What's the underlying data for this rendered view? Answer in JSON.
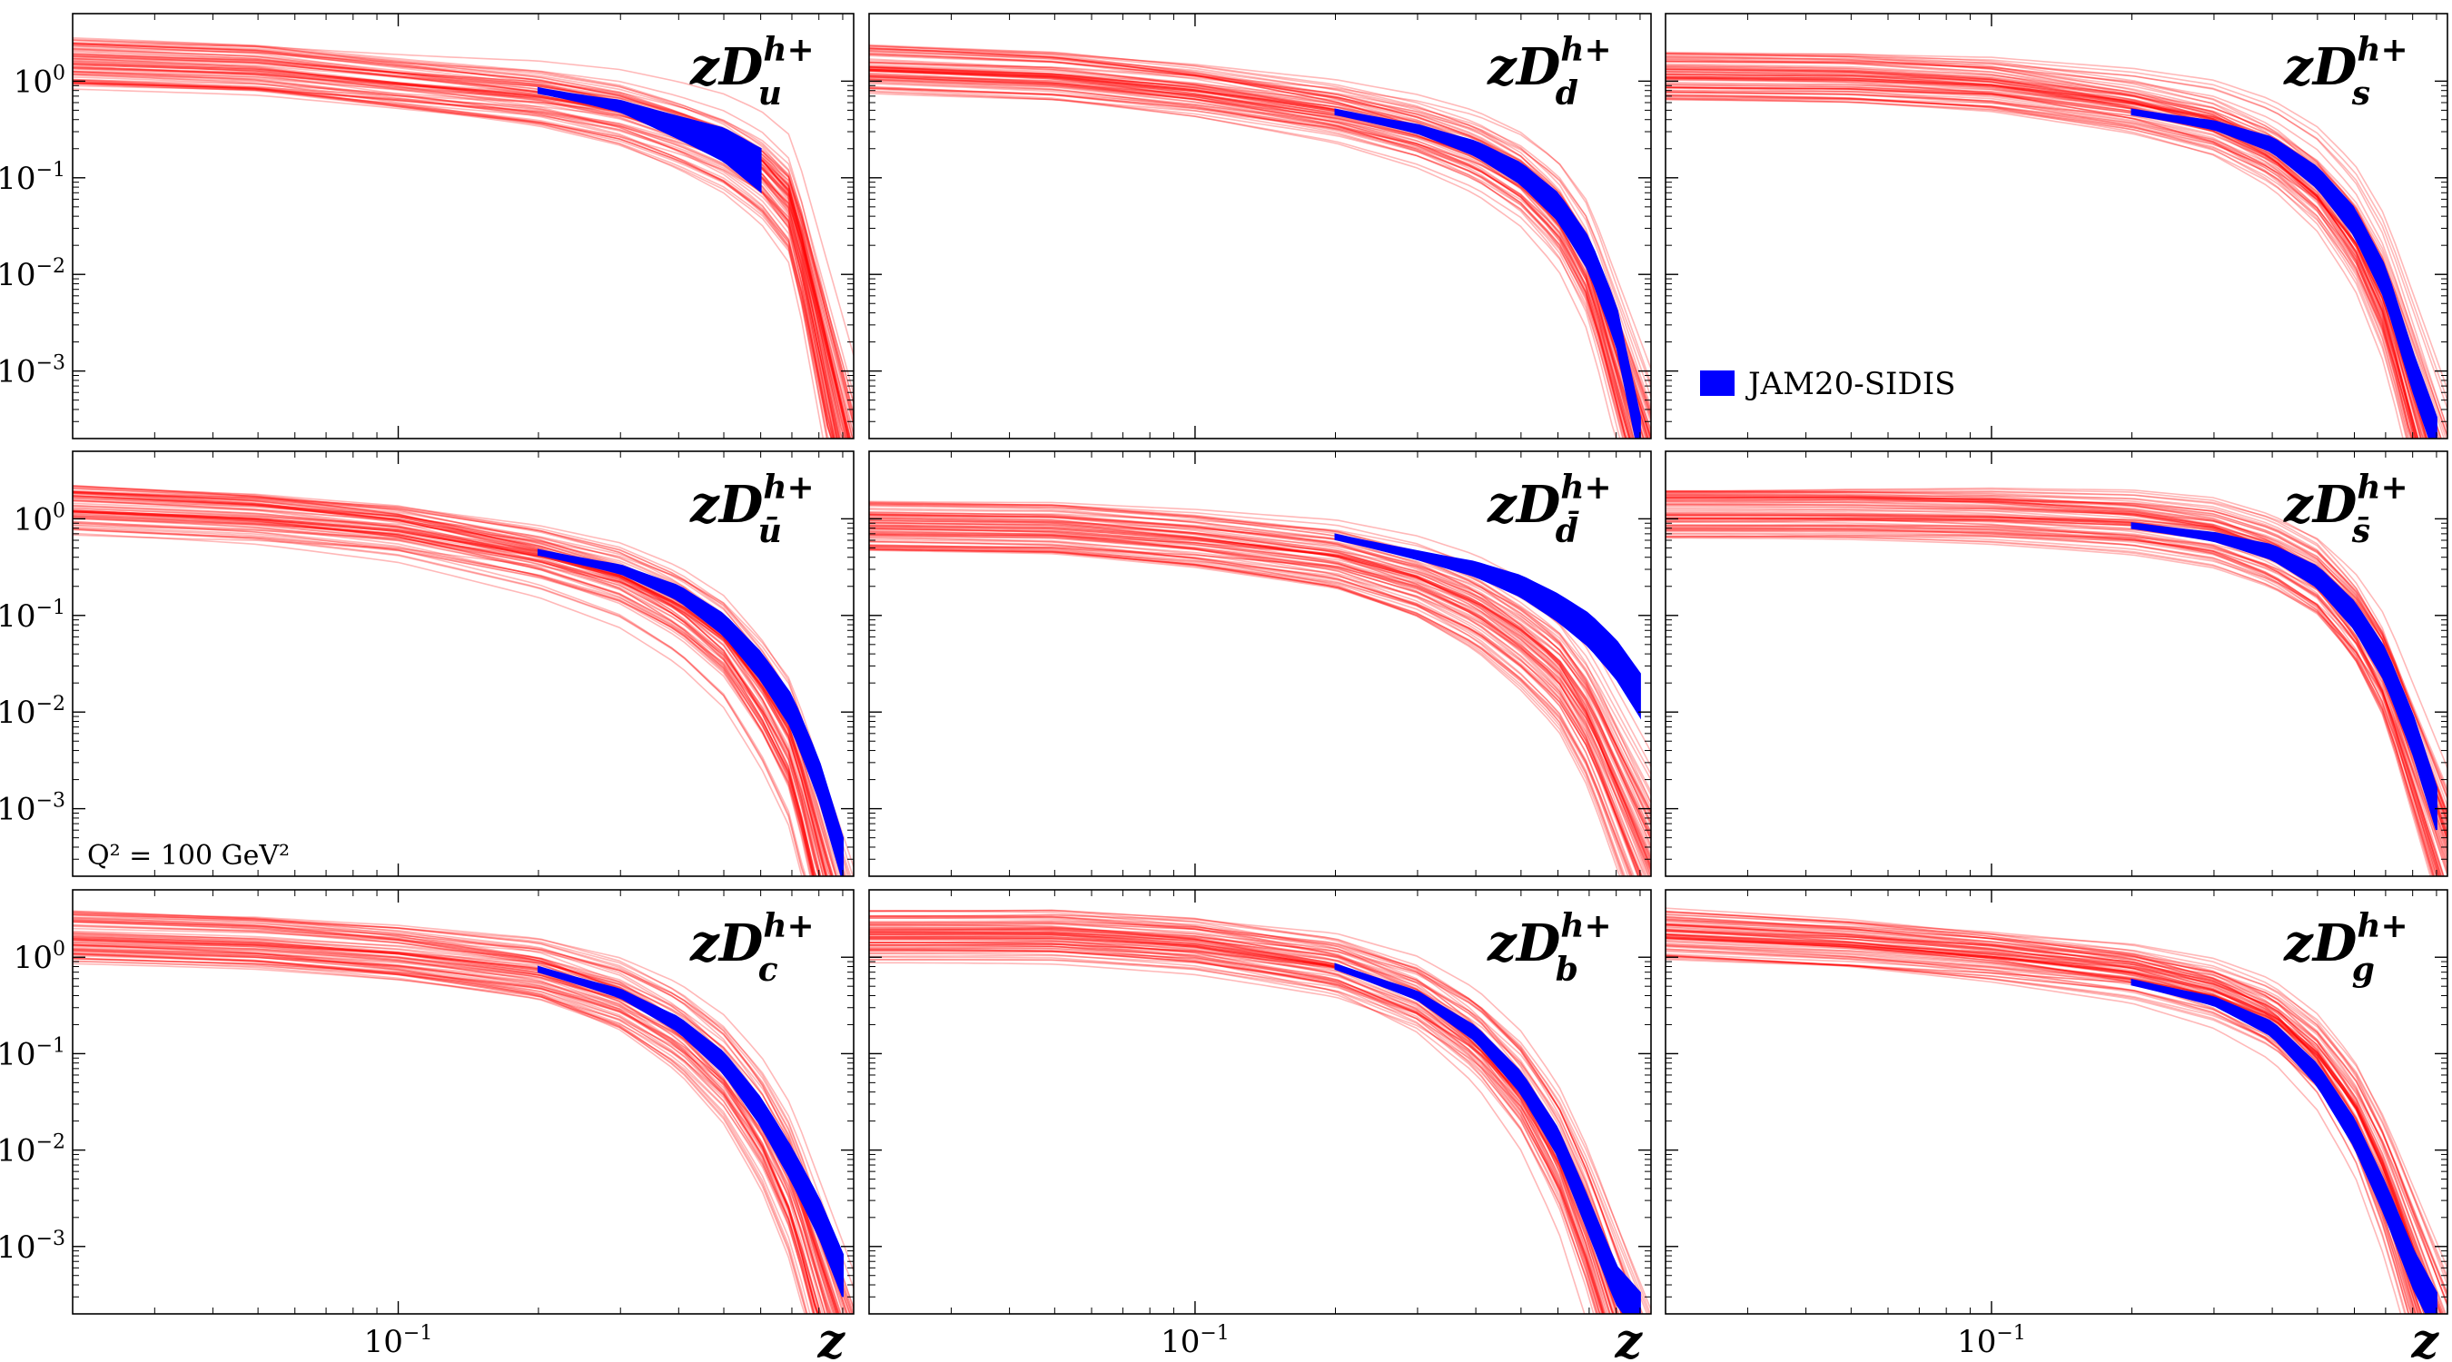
{
  "figure": {
    "x_axis_label": "z",
    "x_major_tick": "10",
    "x_major_tick_exp": "−1",
    "y_tick_base": "10",
    "y_tick_exps": [
      "0",
      "−1",
      "−2",
      "−3"
    ],
    "legend_label": "JAM20-SIDIS",
    "note_text": "Q² = 100 GeV²",
    "hadron_sup": "h+"
  },
  "colors": {
    "replica": "#ff0000",
    "jam20": "#0000ff",
    "axes": "#000000"
  },
  "chart_data": [
    {
      "type": "line",
      "panel_label": "zD_u^{h+}",
      "flavor": "u",
      "flavor_sub": "u",
      "xscale": "log",
      "yscale": "log",
      "xlim": [
        0.02,
        0.95
      ],
      "ylim": [
        0.0002,
        5
      ],
      "series": [
        {
          "name": "replicas",
          "values": {
            "x": [
              0.02,
              0.05,
              0.1,
              0.2,
              0.3,
              0.4,
              0.5,
              0.6,
              0.7,
              0.8
            ],
            "y": [
              1.5,
              1.3,
              0.95,
              0.7,
              0.5,
              0.33,
              0.22,
              0.13,
              0.06,
              0.004
            ]
          }
        },
        {
          "name": "JAM20-SIDIS",
          "values": {
            "x": [
              0.2,
              0.3,
              0.4,
              0.5,
              0.6
            ],
            "y": [
              0.8,
              0.55,
              0.33,
              0.22,
              0.12
            ]
          }
        }
      ]
    },
    {
      "type": "line",
      "panel_label": "zD_d^{h+}",
      "flavor": "d",
      "flavor_sub": "d",
      "xscale": "log",
      "yscale": "log",
      "xlim": [
        0.02,
        0.95
      ],
      "ylim": [
        0.0002,
        5
      ],
      "series": [
        {
          "name": "replicas",
          "values": {
            "x": [
              0.02,
              0.05,
              0.1,
              0.2,
              0.3,
              0.4,
              0.5,
              0.6,
              0.7,
              0.8
            ],
            "y": [
              1.3,
              1.1,
              0.8,
              0.5,
              0.32,
              0.2,
              0.11,
              0.05,
              0.015,
              0.002
            ]
          }
        },
        {
          "name": "JAM20-SIDIS",
          "values": {
            "x": [
              0.2,
              0.3,
              0.4,
              0.5,
              0.6,
              0.7,
              0.8,
              0.9
            ],
            "y": [
              0.48,
              0.32,
              0.2,
              0.11,
              0.05,
              0.016,
              0.003,
              0.0002
            ]
          }
        }
      ]
    },
    {
      "type": "line",
      "panel_label": "zD_s^{h+}",
      "flavor": "s",
      "flavor_sub": "s",
      "xscale": "log",
      "yscale": "log",
      "xlim": [
        0.02,
        0.95
      ],
      "ylim": [
        0.0002,
        5
      ],
      "series": [
        {
          "name": "replicas",
          "values": {
            "x": [
              0.02,
              0.05,
              0.1,
              0.2,
              0.3,
              0.4,
              0.5,
              0.6,
              0.7,
              0.8
            ],
            "y": [
              1.1,
              1.05,
              0.9,
              0.6,
              0.4,
              0.22,
              0.1,
              0.035,
              0.008,
              0.001
            ]
          }
        },
        {
          "name": "JAM20-SIDIS",
          "values": {
            "x": [
              0.2,
              0.3,
              0.4,
              0.5,
              0.6,
              0.7,
              0.8,
              0.9
            ],
            "y": [
              0.48,
              0.35,
              0.22,
              0.1,
              0.035,
              0.008,
              0.001,
              0.0002
            ]
          }
        }
      ]
    },
    {
      "type": "line",
      "panel_label": "zD_ubar^{h+}",
      "flavor": "u",
      "flavor_sub": "ū",
      "xscale": "log",
      "yscale": "log",
      "xlim": [
        0.02,
        0.95
      ],
      "ylim": [
        0.0002,
        5
      ],
      "series": [
        {
          "name": "replicas",
          "values": {
            "x": [
              0.02,
              0.05,
              0.1,
              0.2,
              0.3,
              0.4,
              0.5,
              0.6,
              0.7,
              0.8
            ],
            "y": [
              1.2,
              1.0,
              0.75,
              0.42,
              0.25,
              0.13,
              0.06,
              0.02,
              0.006,
              0.0006
            ]
          }
        },
        {
          "name": "JAM20-SIDIS",
          "values": {
            "x": [
              0.2,
              0.3,
              0.4,
              0.5,
              0.6,
              0.7,
              0.8,
              0.9
            ],
            "y": [
              0.45,
              0.3,
              0.17,
              0.08,
              0.03,
              0.01,
              0.002,
              0.0003
            ]
          }
        }
      ]
    },
    {
      "type": "line",
      "panel_label": "zD_dbar^{h+}",
      "flavor": "d",
      "flavor_sub": "d̄",
      "xscale": "log",
      "yscale": "log",
      "xlim": [
        0.02,
        0.95
      ],
      "ylim": [
        0.0002,
        5
      ],
      "series": [
        {
          "name": "replicas",
          "values": {
            "x": [
              0.02,
              0.05,
              0.1,
              0.2,
              0.3,
              0.4,
              0.5,
              0.6,
              0.7,
              0.8
            ],
            "y": [
              0.85,
              0.8,
              0.62,
              0.42,
              0.25,
              0.14,
              0.07,
              0.035,
              0.012,
              0.003
            ]
          }
        },
        {
          "name": "JAM20-SIDIS",
          "values": {
            "x": [
              0.2,
              0.3,
              0.4,
              0.5,
              0.6,
              0.7,
              0.8,
              0.9
            ],
            "y": [
              0.65,
              0.42,
              0.3,
              0.2,
              0.12,
              0.07,
              0.035,
              0.015
            ]
          }
        }
      ]
    },
    {
      "type": "line",
      "panel_label": "zD_sbar^{h+}",
      "flavor": "s",
      "flavor_sub": "s̄",
      "xscale": "log",
      "yscale": "log",
      "xlim": [
        0.02,
        0.95
      ],
      "ylim": [
        0.0002,
        5
      ],
      "series": [
        {
          "name": "replicas",
          "values": {
            "x": [
              0.02,
              0.05,
              0.1,
              0.2,
              0.3,
              0.4,
              0.5,
              0.6,
              0.7,
              0.8
            ],
            "y": [
              1.1,
              1.1,
              1.05,
              0.9,
              0.7,
              0.45,
              0.25,
              0.1,
              0.03,
              0.005
            ]
          }
        },
        {
          "name": "JAM20-SIDIS",
          "values": {
            "x": [
              0.2,
              0.3,
              0.4,
              0.5,
              0.6,
              0.7,
              0.8,
              0.9
            ],
            "y": [
              0.85,
              0.65,
              0.45,
              0.25,
              0.1,
              0.03,
              0.006,
              0.001
            ]
          }
        }
      ]
    },
    {
      "type": "line",
      "panel_label": "zD_c^{h+}",
      "flavor": "c",
      "flavor_sub": "c",
      "xscale": "log",
      "yscale": "log",
      "xlim": [
        0.02,
        0.95
      ],
      "ylim": [
        0.0002,
        5
      ],
      "series": [
        {
          "name": "replicas",
          "values": {
            "x": [
              0.02,
              0.05,
              0.1,
              0.2,
              0.3,
              0.4,
              0.5,
              0.6,
              0.7,
              0.8
            ],
            "y": [
              1.6,
              1.4,
              1.1,
              0.75,
              0.42,
              0.2,
              0.08,
              0.025,
              0.006,
              0.0008
            ]
          }
        },
        {
          "name": "JAM20-SIDIS",
          "values": {
            "x": [
              0.2,
              0.3,
              0.4,
              0.5,
              0.6,
              0.7,
              0.8,
              0.9
            ],
            "y": [
              0.75,
              0.42,
              0.2,
              0.08,
              0.025,
              0.007,
              0.002,
              0.0005
            ]
          }
        }
      ]
    },
    {
      "type": "line",
      "panel_label": "zD_b^{h+}",
      "flavor": "b",
      "flavor_sub": "b",
      "xscale": "log",
      "yscale": "log",
      "xlim": [
        0.02,
        0.95
      ],
      "ylim": [
        0.0002,
        5
      ],
      "series": [
        {
          "name": "replicas",
          "values": {
            "x": [
              0.02,
              0.05,
              0.1,
              0.2,
              0.3,
              0.4,
              0.5,
              0.6,
              0.7,
              0.8
            ],
            "y": [
              1.6,
              1.6,
              1.3,
              0.8,
              0.4,
              0.16,
              0.05,
              0.012,
              0.002,
              0.0003
            ]
          }
        },
        {
          "name": "JAM20-SIDIS",
          "values": {
            "x": [
              0.2,
              0.3,
              0.4,
              0.5,
              0.6,
              0.7,
              0.8,
              0.9
            ],
            "y": [
              0.8,
              0.4,
              0.16,
              0.05,
              0.012,
              0.002,
              0.0004,
              0.0002
            ]
          }
        }
      ]
    },
    {
      "type": "line",
      "panel_label": "zD_g^{h+}",
      "flavor": "g",
      "flavor_sub": "g",
      "xscale": "log",
      "yscale": "log",
      "xlim": [
        0.02,
        0.95
      ],
      "ylim": [
        0.0002,
        5
      ],
      "series": [
        {
          "name": "replicas",
          "values": {
            "x": [
              0.02,
              0.05,
              0.1,
              0.2,
              0.3,
              0.4,
              0.5,
              0.6,
              0.7,
              0.8
            ],
            "y": [
              1.6,
              1.3,
              1.0,
              0.7,
              0.45,
              0.25,
              0.1,
              0.03,
              0.006,
              0.001
            ]
          }
        },
        {
          "name": "JAM20-SIDIS",
          "values": {
            "x": [
              0.2,
              0.3,
              0.4,
              0.5,
              0.6,
              0.7,
              0.8,
              0.9
            ],
            "y": [
              0.55,
              0.35,
              0.18,
              0.06,
              0.015,
              0.003,
              0.0006,
              0.0002
            ]
          }
        }
      ]
    }
  ]
}
